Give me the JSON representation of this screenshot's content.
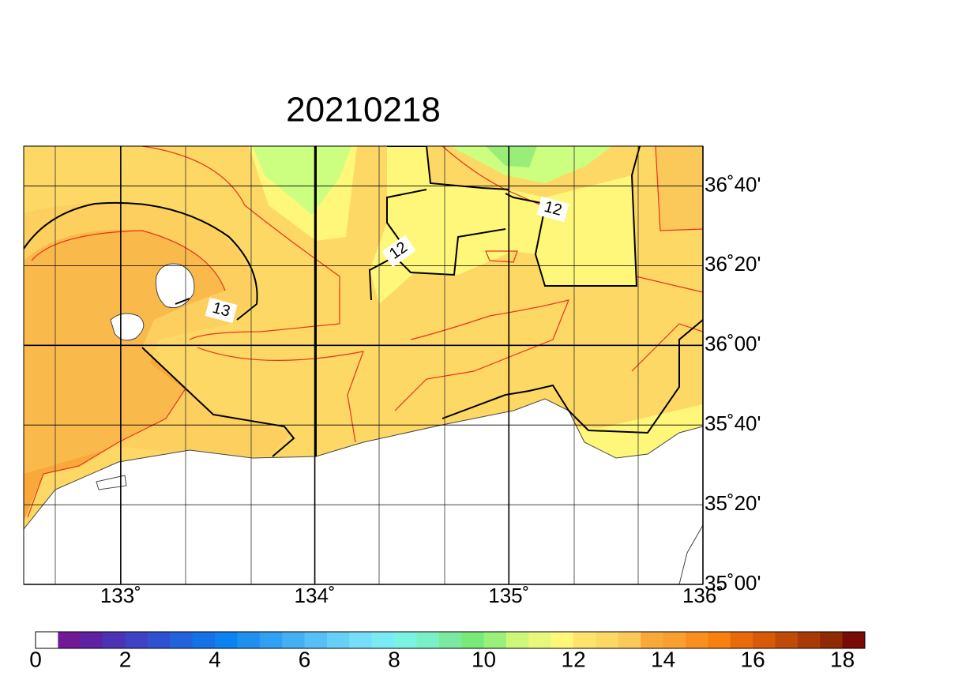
{
  "map": {
    "title": "20210218",
    "xlim": [
      132.5,
      136
    ],
    "ylim": [
      35,
      36.8333
    ],
    "xticks": [
      {
        "value": 133,
        "label": "133˚"
      },
      {
        "value": 134,
        "label": "134˚"
      },
      {
        "value": 135,
        "label": "135˚"
      },
      {
        "value": 136,
        "label": "136˚"
      }
    ],
    "yticks": [
      {
        "value": 35,
        "label": "35˚00'"
      },
      {
        "value": 35.3333,
        "label": "35˚20'"
      },
      {
        "value": 35.6667,
        "label": "35˚40'"
      },
      {
        "value": 36,
        "label": "36˚00'"
      },
      {
        "value": 36.3333,
        "label": "36˚20'"
      },
      {
        "value": 36.6667,
        "label": "36˚40'"
      }
    ],
    "contour_labels": [
      "12",
      "12",
      "13"
    ],
    "colorbar": {
      "range": [
        0,
        18.5
      ],
      "ticks": [
        0,
        2,
        4,
        6,
        8,
        10,
        12,
        14,
        16,
        18
      ],
      "colors": [
        "#ffffff",
        "#701a96",
        "#5e22a4",
        "#4c32b4",
        "#3e42c4",
        "#3052d2",
        "#2262dc",
        "#1472e6",
        "#0a82f0",
        "#1e90f0",
        "#30a0f2",
        "#44b0f4",
        "#56c0f6",
        "#68d0f8",
        "#76def8",
        "#7aeaf4",
        "#7af2e4",
        "#7af0c8",
        "#7aeaa0",
        "#78ea7a",
        "#99f07a",
        "#ccf77a",
        "#e8f87a",
        "#fff77a",
        "#fde36b",
        "#fdd865",
        "#fbc95a",
        "#f9a93a",
        "#f9a030",
        "#f98f20",
        "#f78010",
        "#e86a0a",
        "#d85a08",
        "#c04a08",
        "#a83a08",
        "#902a06",
        "#7a0a04"
      ]
    }
  }
}
